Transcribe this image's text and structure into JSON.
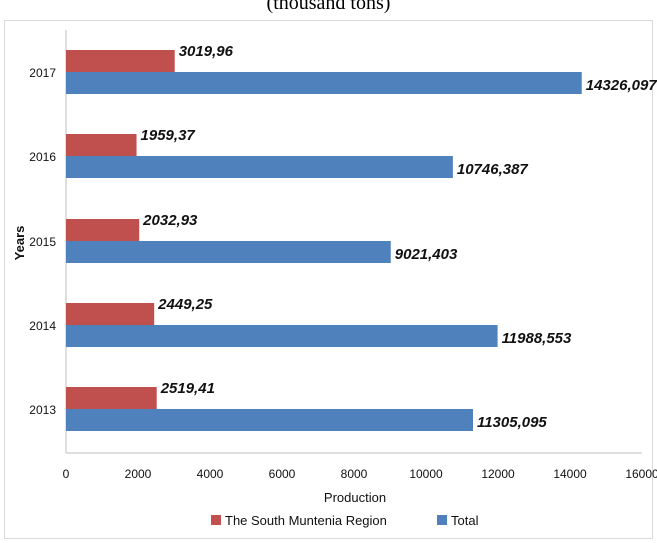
{
  "chart_data": {
    "type": "bar",
    "orientation": "horizontal",
    "title": "(thousand tons)",
    "xlabel": "Production",
    "ylabel": "Years",
    "categories": [
      "2013",
      "2014",
      "2015",
      "2016",
      "2017"
    ],
    "series": [
      {
        "name": "The South Muntenia Region",
        "color": "#c0504d",
        "values": [
          2519.41,
          2449.25,
          2032.93,
          1959.37,
          3019.96
        ],
        "labels": [
          "2519,41",
          "2449,25",
          "2032,93",
          "1959,37",
          "3019,96"
        ]
      },
      {
        "name": "Total",
        "color": "#4f81bd",
        "values": [
          11305.095,
          11988.553,
          9021.403,
          10746.387,
          14326.097
        ],
        "labels": [
          "11305,095",
          "11988,553",
          "9021,403",
          "10746,387",
          "14326,097"
        ]
      }
    ],
    "xlim": [
      0,
      16000
    ],
    "xticks": [
      "0",
      "2000",
      "4000",
      "6000",
      "8000",
      "10000",
      "12000",
      "14000",
      "16000"
    ],
    "grid": false,
    "legend_position": "bottom"
  }
}
